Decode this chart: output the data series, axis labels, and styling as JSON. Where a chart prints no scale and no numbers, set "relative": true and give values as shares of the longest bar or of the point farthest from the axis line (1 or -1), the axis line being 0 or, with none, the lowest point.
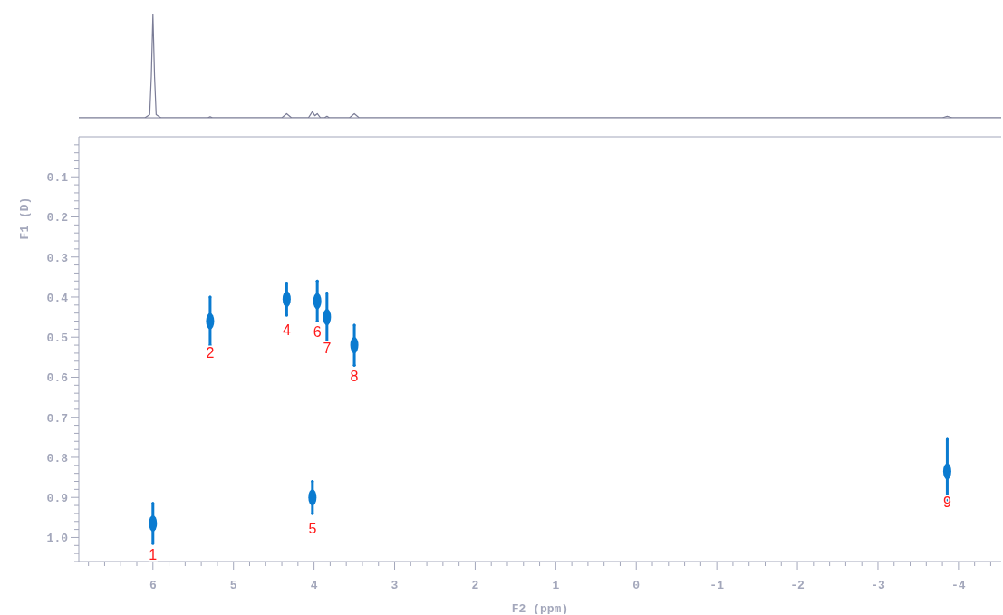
{
  "chart_data": [
    {
      "type": "line",
      "relative": true,
      "tick_labels": false,
      "color": "#7a7c96",
      "xlim": [
        6.92,
        -4.53
      ],
      "x": [
        6.92,
        6.1,
        6.04,
        6.02,
        6.0,
        5.98,
        5.96,
        5.9,
        5.32,
        5.29,
        5.26,
        4.4,
        4.34,
        4.28,
        4.07,
        4.02,
        3.99,
        3.96,
        3.92,
        3.87,
        3.84,
        3.81,
        3.56,
        3.5,
        3.44,
        -3.8,
        -3.86,
        -3.92,
        -4.53
      ],
      "values": [
        0,
        0,
        0.03,
        0.4,
        1,
        0.4,
        0.03,
        0,
        0,
        0.01,
        0,
        0,
        0.04,
        0,
        0,
        0.06,
        0.02,
        0.04,
        0,
        0,
        0.015,
        0,
        0,
        0.04,
        0,
        0,
        0.015,
        0,
        0
      ]
    },
    {
      "type": "scatter",
      "xlabel": "F2 (ppm)",
      "ylabel": "F1 (D)",
      "color": "#0a7bd0",
      "grid": false,
      "xlim": [
        6.92,
        -4.53
      ],
      "ylim": [
        1.06,
        0
      ],
      "x": [
        6.0,
        5.29,
        4.34,
        4.02,
        3.96,
        3.84,
        3.5,
        -3.86
      ],
      "values": [
        0.965,
        0.46,
        0.405,
        0.9,
        0.41,
        0.45,
        0.52,
        0.835
      ],
      "errors": [
        0.05,
        0.06,
        0.04,
        0.04,
        0.05,
        0.06,
        0.05,
        0.08
      ],
      "annotations": [
        {
          "text": "1",
          "x": 6.0,
          "y": 0.965
        },
        {
          "text": "2",
          "x": 5.29,
          "y": 0.46
        },
        {
          "text": "4",
          "x": 4.34,
          "y": 0.405
        },
        {
          "text": "5",
          "x": 4.02,
          "y": 0.9
        },
        {
          "text": "6",
          "x": 3.96,
          "y": 0.41
        },
        {
          "text": "7",
          "x": 3.84,
          "y": 0.45
        },
        {
          "text": "8",
          "x": 3.5,
          "y": 0.52
        },
        {
          "text": "9",
          "x": -3.86,
          "y": 0.835
        }
      ],
      "xticks": [
        {
          "value": 6.8,
          "label": null
        },
        {
          "value": 6.6,
          "label": null
        },
        {
          "value": 6.4,
          "label": null
        },
        {
          "value": 6.2,
          "label": null
        },
        6,
        {
          "value": 5.8,
          "label": null
        },
        {
          "value": 5.6,
          "label": null
        },
        {
          "value": 5.4,
          "label": null
        },
        {
          "value": 5.2,
          "label": null
        },
        5,
        {
          "value": 4.8,
          "label": null
        },
        {
          "value": 4.6,
          "label": null
        },
        {
          "value": 4.4,
          "label": null
        },
        {
          "value": 4.2,
          "label": null
        },
        4,
        {
          "value": 3.8,
          "label": null
        },
        {
          "value": 3.6,
          "label": null
        },
        {
          "value": 3.4,
          "label": null
        },
        {
          "value": 3.2,
          "label": null
        },
        3,
        {
          "value": 2.8,
          "label": null
        },
        {
          "value": 2.6,
          "label": null
        },
        {
          "value": 2.4,
          "label": null
        },
        {
          "value": 2.2,
          "label": null
        },
        2,
        {
          "value": 1.8,
          "label": null
        },
        {
          "value": 1.6,
          "label": null
        },
        {
          "value": 1.4,
          "label": null
        },
        {
          "value": 1.2,
          "label": null
        },
        1,
        {
          "value": 0.8,
          "label": null
        },
        {
          "value": 0.6,
          "label": null
        },
        {
          "value": 0.4,
          "label": null
        },
        {
          "value": 0.2,
          "label": null
        },
        0,
        {
          "value": -0.2,
          "label": null
        },
        {
          "value": -0.4,
          "label": null
        },
        {
          "value": -0.6,
          "label": null
        },
        {
          "value": -0.8,
          "label": null
        },
        -1,
        {
          "value": -1.2,
          "label": null
        },
        {
          "value": -1.4,
          "label": null
        },
        {
          "value": -1.6,
          "label": null
        },
        {
          "value": -1.8,
          "label": null
        },
        -2,
        {
          "value": -2.2,
          "label": null
        },
        {
          "value": -2.4,
          "label": null
        },
        {
          "value": -2.6,
          "label": null
        },
        {
          "value": -2.8,
          "label": null
        },
        -3,
        {
          "value": -3.2,
          "label": null
        },
        {
          "value": -3.4,
          "label": null
        },
        {
          "value": -3.6,
          "label": null
        },
        {
          "value": -3.8,
          "label": null
        },
        -4,
        {
          "value": -4.2,
          "label": null
        },
        {
          "value": -4.4,
          "label": null
        }
      ],
      "yticks": [
        {
          "value": 0.02,
          "label": null
        },
        {
          "value": 0.04,
          "label": null
        },
        {
          "value": 0.06,
          "label": null
        },
        {
          "value": 0.08,
          "label": null
        },
        0.1,
        {
          "value": 0.12,
          "label": null
        },
        {
          "value": 0.14,
          "label": null
        },
        {
          "value": 0.16,
          "label": null
        },
        {
          "value": 0.18,
          "label": null
        },
        0.2,
        {
          "value": 0.22,
          "label": null
        },
        {
          "value": 0.24,
          "label": null
        },
        {
          "value": 0.26,
          "label": null
        },
        {
          "value": 0.28,
          "label": null
        },
        0.3,
        {
          "value": 0.32,
          "label": null
        },
        {
          "value": 0.34,
          "label": null
        },
        {
          "value": 0.36,
          "label": null
        },
        {
          "value": 0.38,
          "label": null
        },
        0.4,
        {
          "value": 0.42,
          "label": null
        },
        {
          "value": 0.44,
          "label": null
        },
        {
          "value": 0.46,
          "label": null
        },
        {
          "value": 0.48,
          "label": null
        },
        0.5,
        {
          "value": 0.52,
          "label": null
        },
        {
          "value": 0.54,
          "label": null
        },
        {
          "value": 0.56,
          "label": null
        },
        {
          "value": 0.58,
          "label": null
        },
        0.6,
        {
          "value": 0.62,
          "label": null
        },
        {
          "value": 0.64,
          "label": null
        },
        {
          "value": 0.66,
          "label": null
        },
        {
          "value": 0.68,
          "label": null
        },
        0.7,
        {
          "value": 0.72,
          "label": null
        },
        {
          "value": 0.74,
          "label": null
        },
        {
          "value": 0.76,
          "label": null
        },
        {
          "value": 0.78,
          "label": null
        },
        0.8,
        {
          "value": 0.82,
          "label": null
        },
        {
          "value": 0.84,
          "label": null
        },
        {
          "value": 0.86,
          "label": null
        },
        {
          "value": 0.88,
          "label": null
        },
        0.9,
        {
          "value": 0.92,
          "label": null
        },
        {
          "value": 0.94,
          "label": null
        },
        {
          "value": 0.96,
          "label": null
        },
        {
          "value": 0.98,
          "label": null
        },
        {
          "value": 1,
          "label": "1.0"
        },
        {
          "value": 1.02,
          "label": null
        },
        {
          "value": 1.04,
          "label": null
        },
        {
          "value": 1.06,
          "label": null
        }
      ]
    }
  ]
}
